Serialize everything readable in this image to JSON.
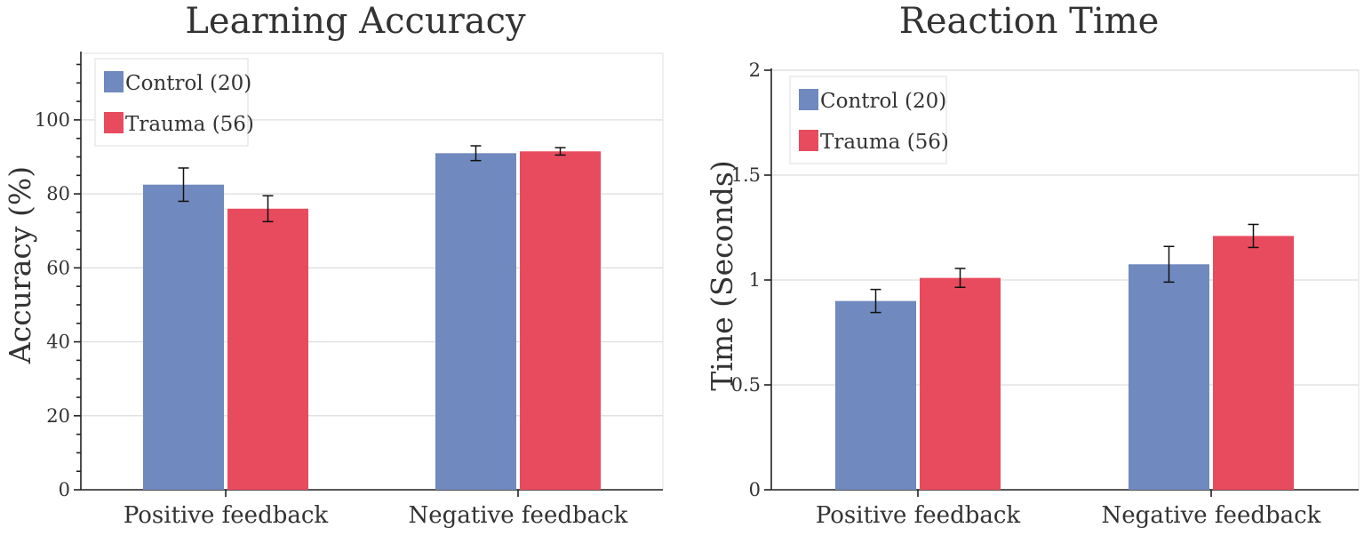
{
  "colors": {
    "control": "#7089be",
    "trauma": "#e84b5e"
  },
  "chart_data": [
    {
      "type": "bar",
      "title": "Learning Accuracy",
      "xlabel": "",
      "ylabel": "Accuracy (%)",
      "ylim": [
        0,
        118
      ],
      "yticks": [
        0,
        20,
        40,
        60,
        80,
        100
      ],
      "ytick_labels": [
        "0",
        "20",
        "40",
        "60",
        "80",
        "100"
      ],
      "minor_tick_step": 5,
      "categories": [
        "Positive feedback",
        "Negative feedback"
      ],
      "series": [
        {
          "name": "Control (20)",
          "color": "#7089be",
          "values": [
            82.5,
            91.0
          ],
          "errors": [
            4.5,
            2.0
          ]
        },
        {
          "name": "Trauma (56)",
          "color": "#e84b5e",
          "values": [
            76.0,
            91.5
          ],
          "errors": [
            3.5,
            1.0
          ]
        }
      ],
      "legend": "top-left",
      "grid": true
    },
    {
      "type": "bar",
      "title": "Reaction Time",
      "xlabel": "",
      "ylabel": "Time (Seconds)",
      "ylim": [
        0,
        2
      ],
      "yticks": [
        0,
        0.5,
        1,
        1.5,
        2
      ],
      "ytick_labels": [
        "0",
        "0.5",
        "1",
        "1.5",
        "2"
      ],
      "minor_tick_step": 0,
      "categories": [
        "Positive feedback",
        "Negative feedback"
      ],
      "series": [
        {
          "name": "Control (20)",
          "color": "#7089be",
          "values": [
            0.9,
            1.075
          ],
          "errors": [
            0.055,
            0.085
          ]
        },
        {
          "name": "Trauma (56)",
          "color": "#e84b5e",
          "values": [
            1.01,
            1.21
          ],
          "errors": [
            0.045,
            0.055
          ]
        }
      ],
      "legend": "top-left",
      "grid": true
    }
  ]
}
